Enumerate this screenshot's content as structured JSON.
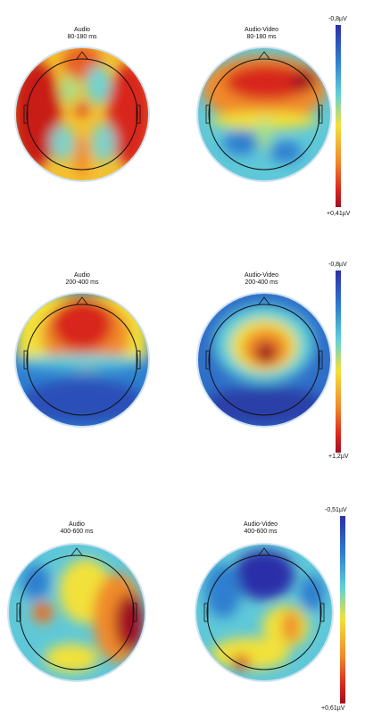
{
  "panels": [
    {
      "maps": [
        {
          "title": "Audio",
          "window": "80-180 ms"
        },
        {
          "title": "Audio-Video",
          "window": "80-180 ms"
        }
      ],
      "scale": {
        "top": "-0,8µV",
        "bottom": "+0,41µV"
      }
    },
    {
      "maps": [
        {
          "title": "Audio",
          "window": "200-400 ms"
        },
        {
          "title": "Audio-Video",
          "window": "200-400 ms"
        }
      ],
      "scale": {
        "top": "-0,8µV",
        "bottom": "+1,2µV"
      }
    },
    {
      "maps": [
        {
          "title": "Audio",
          "window": "400-600 ms"
        },
        {
          "title": "Audio-Video",
          "window": "400-600 ms"
        }
      ],
      "scale": {
        "top": "-0,51µV",
        "bottom": "+0,61µV"
      }
    }
  ],
  "colors": {
    "negative": "#2b2fa8",
    "neutral": "#f2e13a",
    "positive": "#a01020",
    "head_outline": "#111111",
    "head_rim": "#cfe2f3"
  }
}
